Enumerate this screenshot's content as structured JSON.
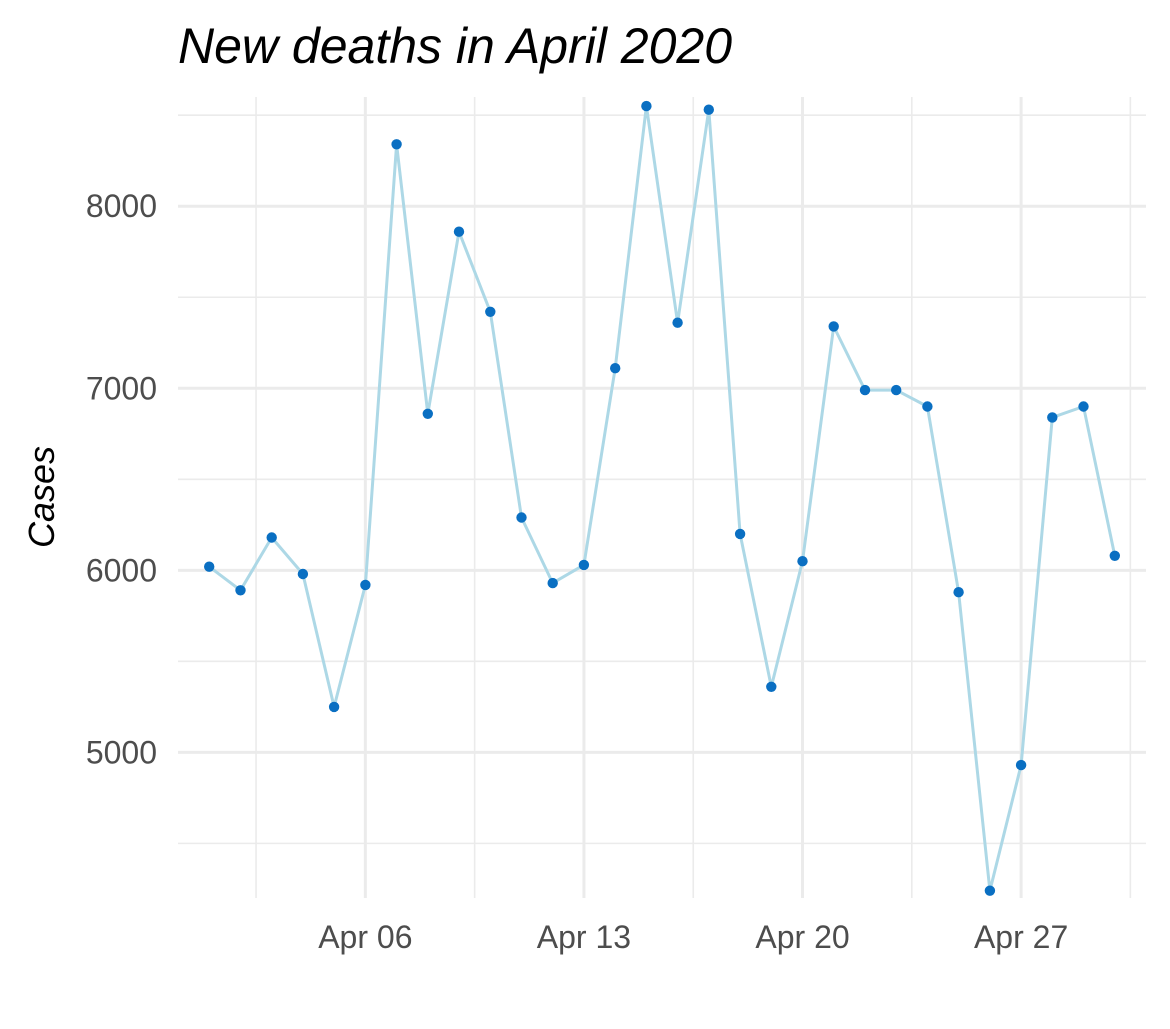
{
  "chart_data": {
    "type": "line",
    "title": "New deaths in April 2020",
    "xlabel": "",
    "ylabel": "Cases",
    "x_ticks": [
      "Apr 06",
      "Apr 13",
      "Apr 20",
      "Apr 27"
    ],
    "y_ticks": [
      "5000",
      "6000",
      "7000",
      "8000"
    ],
    "ylim": [
      4200,
      8600
    ],
    "xlim": [
      "2020-03-31",
      "2020-05-01"
    ],
    "grid": true,
    "line_color": "#add8e6",
    "point_color": "#0a6fc2",
    "series": [
      {
        "x": [
          "2020-04-01",
          "2020-04-02",
          "2020-04-03",
          "2020-04-04",
          "2020-04-05",
          "2020-04-06",
          "2020-04-07",
          "2020-04-08",
          "2020-04-09",
          "2020-04-10",
          "2020-04-11",
          "2020-04-12",
          "2020-04-13",
          "2020-04-14",
          "2020-04-15",
          "2020-04-16",
          "2020-04-17",
          "2020-04-18",
          "2020-04-19",
          "2020-04-20",
          "2020-04-21",
          "2020-04-22",
          "2020-04-23",
          "2020-04-24",
          "2020-04-25",
          "2020-04-26",
          "2020-04-27",
          "2020-04-28",
          "2020-04-29",
          "2020-04-30"
        ],
        "values": [
          6020,
          5890,
          6180,
          5980,
          5250,
          5920,
          8340,
          6860,
          7860,
          7420,
          6290,
          5930,
          6030,
          7110,
          8550,
          7360,
          8530,
          6200,
          5360,
          6050,
          7340,
          6990,
          6990,
          6900,
          5880,
          4240,
          4930,
          6840,
          6900,
          6080
        ]
      }
    ]
  }
}
